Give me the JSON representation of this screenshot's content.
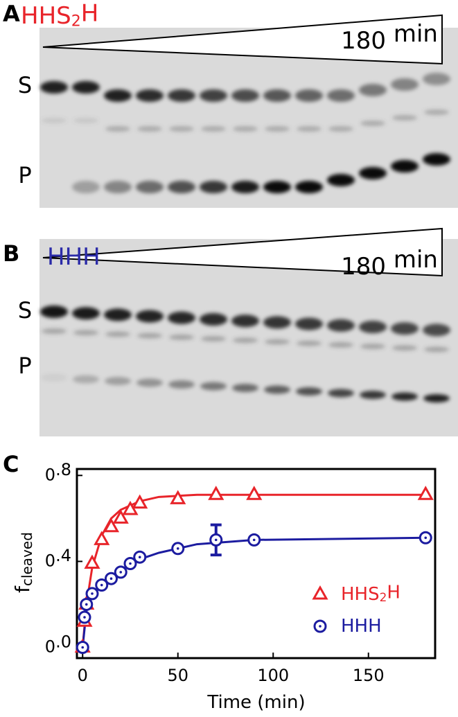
{
  "panels": {
    "a": {
      "letter": "A",
      "construct": "HHS2H",
      "time_label": "180 min",
      "s": "S",
      "p": "P"
    },
    "b": {
      "letter": "B",
      "construct": "HHH",
      "time_label": "180 min",
      "s": "S",
      "p": "P"
    },
    "c": {
      "letter": "C"
    }
  },
  "chart_data": {
    "type": "scatter",
    "xlabel": "Time (min)",
    "ylabel": "f",
    "ylabel_sub": "cleaved",
    "xlim": [
      -3,
      185
    ],
    "ylim": [
      -0.05,
      0.83
    ],
    "xticks": [
      0,
      50,
      100,
      150
    ],
    "yticks": [
      {
        "value": 0,
        "label": "0.0"
      },
      0.4,
      0.8
    ],
    "legend": "lower right",
    "x": [
      0,
      1,
      2,
      5,
      10,
      15,
      20,
      25,
      30,
      50,
      70,
      90,
      180
    ],
    "series": [
      {
        "name": "HHS2H",
        "color": "#e8242a",
        "marker": "triangle",
        "values": [
          0.0,
          0.12,
          0.2,
          0.39,
          0.5,
          0.56,
          0.6,
          0.64,
          0.67,
          0.69,
          0.71,
          0.71,
          0.71
        ],
        "fit": {
          "x": [
            0,
            2,
            5,
            10,
            15,
            20,
            30,
            40,
            60,
            90,
            180
          ],
          "values": [
            0.0,
            0.2,
            0.37,
            0.52,
            0.6,
            0.64,
            0.68,
            0.7,
            0.71,
            0.71,
            0.71
          ]
        }
      },
      {
        "name": "HHH",
        "color": "#1c1ca0",
        "marker": "circle",
        "values": [
          0.0,
          0.14,
          0.2,
          0.25,
          0.29,
          0.32,
          0.35,
          0.39,
          0.42,
          0.46,
          0.5,
          0.5,
          0.51
        ],
        "errors": [
          null,
          null,
          null,
          null,
          null,
          null,
          null,
          null,
          null,
          null,
          0.07,
          null,
          null
        ],
        "fit": {
          "x": [
            0,
            2,
            5,
            10,
            15,
            20,
            30,
            40,
            60,
            90,
            180
          ],
          "values": [
            0.0,
            0.17,
            0.24,
            0.29,
            0.33,
            0.36,
            0.41,
            0.44,
            0.48,
            0.5,
            0.51
          ]
        }
      }
    ]
  }
}
